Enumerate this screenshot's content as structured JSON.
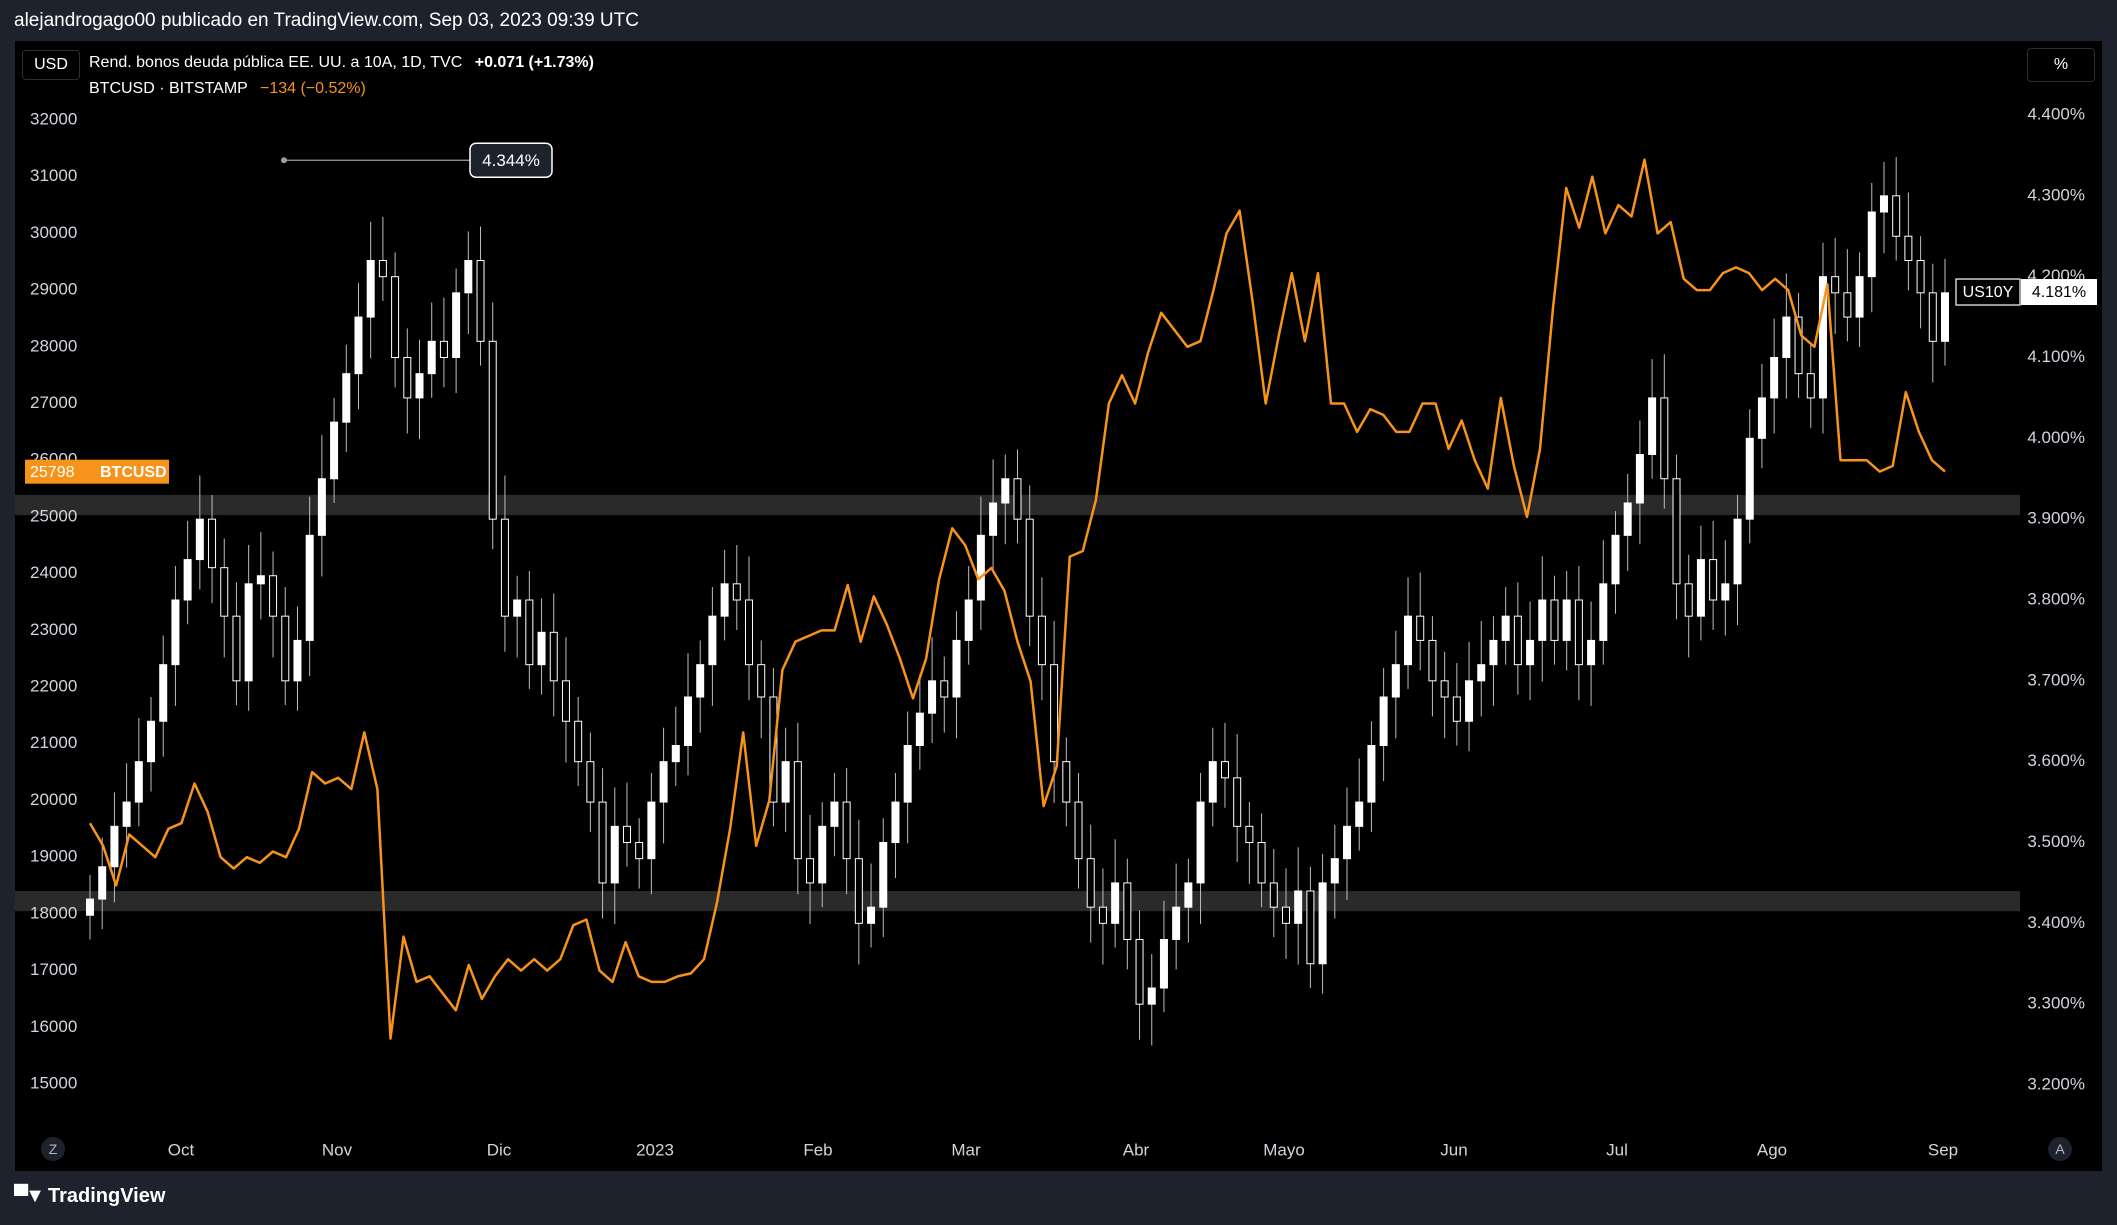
{
  "caption": "alejandrogago00 publicado en TradingView.com, Sep 03, 2023 09:39 UTC",
  "brand": "TradingView",
  "currency_button": "USD",
  "percent_button": "%",
  "z_button": "Z",
  "a_button": "A",
  "legend": {
    "primary": {
      "name": "Rend. bonos deuda pública EE. UU. a 10A, 1D, TVC",
      "change": "+0.071 (+1.73%)"
    },
    "secondary": {
      "name": "BTCUSD · BITSTAMP",
      "change": "−134 (−0.52%)"
    }
  },
  "labels": {
    "btc_price": "25798",
    "btc_symbol": "BTCUSD",
    "us10y_symbol": "US10Y",
    "us10y_value": "4.181%",
    "callout": "4.344%"
  },
  "colors": {
    "btc": "#f7931a",
    "candle": "#ffffff",
    "zone": "#2a2a2a"
  },
  "chart_data": {
    "type": "line",
    "left_axis": {
      "ticks": [
        "32000",
        "31000",
        "30000",
        "29000",
        "28000",
        "27000",
        "26000",
        "25000",
        "24000",
        "23000",
        "22000",
        "21000",
        "20000",
        "19000",
        "18000",
        "17000",
        "16000",
        "15000"
      ],
      "range": [
        15000,
        32000
      ]
    },
    "right_axis": {
      "ticks": [
        "4.400%",
        "4.300%",
        "4.200%",
        "4.100%",
        "4.000%",
        "3.900%",
        "3.800%",
        "3.700%",
        "3.600%",
        "3.500%",
        "3.400%",
        "3.300%",
        "3.200%"
      ],
      "range": [
        3.2,
        4.4
      ]
    },
    "x_ticks": [
      "Oct",
      "Nov",
      "Dic",
      "2023",
      "Feb",
      "Mar",
      "Abr",
      "Mayo",
      "Jun",
      "Jul",
      "Ago",
      "Sep"
    ],
    "zones": [
      {
        "from": 3.415,
        "to": 3.44
      },
      {
        "from": 3.905,
        "to": 3.93
      }
    ],
    "series": [
      {
        "kind": "line",
        "axis": "left",
        "values": [
          19600,
          19200,
          18500,
          19400,
          19200,
          19000,
          19500,
          19600,
          20300,
          19800,
          19000,
          18800,
          19000,
          18900,
          19100,
          19000,
          19500,
          20500,
          20300,
          20400,
          20200,
          21200,
          20200,
          15800,
          17600,
          16800,
          16900,
          16600,
          16300,
          17100,
          16500,
          16900,
          17200,
          17000,
          17200,
          17000,
          17200,
          17800,
          17900,
          17000,
          16800,
          17500,
          16900,
          16800,
          16800,
          16900,
          16950,
          17200,
          18200,
          19500,
          21200,
          19200,
          20000,
          22300,
          22800,
          22900,
          23000,
          23000,
          23800,
          22800,
          23600,
          23100,
          22500,
          21800,
          22500,
          23900,
          24800,
          24500,
          23900,
          24100,
          23700,
          22800,
          22100,
          19900,
          20600,
          24300,
          24400,
          25300,
          27000,
          27500,
          27000,
          27900,
          28600,
          28300,
          28000,
          28100,
          29000,
          30000,
          30400,
          28800,
          27000,
          28200,
          29300,
          28100,
          29300,
          27000,
          27000,
          26500,
          26900,
          26800,
          26500,
          26500,
          27000,
          27000,
          26200,
          26700,
          26000,
          25500,
          27100,
          25900,
          25000,
          26200,
          28700,
          30800,
          30100,
          31000,
          30000,
          30500,
          30300,
          31300,
          30000,
          30200,
          29200,
          29000,
          29000,
          29300,
          29400,
          29300,
          29000,
          29200,
          29000,
          28200,
          28000,
          29100,
          26000,
          26000,
          26000,
          25800,
          25900,
          27200,
          26500,
          26000,
          25800
        ]
      },
      {
        "kind": "candles",
        "axis": "right",
        "close": [
          3.43,
          3.47,
          3.52,
          3.55,
          3.6,
          3.65,
          3.72,
          3.8,
          3.85,
          3.9,
          3.84,
          3.78,
          3.7,
          3.82,
          3.83,
          3.78,
          3.7,
          3.75,
          3.88,
          3.95,
          4.02,
          4.08,
          4.15,
          4.22,
          4.2,
          4.1,
          4.05,
          4.08,
          4.12,
          4.1,
          4.18,
          4.22,
          4.12,
          3.9,
          3.78,
          3.8,
          3.72,
          3.76,
          3.7,
          3.65,
          3.6,
          3.55,
          3.45,
          3.52,
          3.5,
          3.48,
          3.55,
          3.6,
          3.62,
          3.68,
          3.72,
          3.78,
          3.82,
          3.8,
          3.72,
          3.68,
          3.55,
          3.6,
          3.48,
          3.45,
          3.52,
          3.55,
          3.48,
          3.4,
          3.42,
          3.5,
          3.55,
          3.62,
          3.66,
          3.7,
          3.68,
          3.75,
          3.8,
          3.88,
          3.92,
          3.95,
          3.9,
          3.78,
          3.72,
          3.6,
          3.55,
          3.48,
          3.42,
          3.4,
          3.45,
          3.38,
          3.3,
          3.32,
          3.38,
          3.42,
          3.45,
          3.55,
          3.6,
          3.58,
          3.52,
          3.5,
          3.45,
          3.42,
          3.4,
          3.44,
          3.35,
          3.45,
          3.48,
          3.52,
          3.55,
          3.62,
          3.68,
          3.72,
          3.78,
          3.75,
          3.7,
          3.68,
          3.65,
          3.7,
          3.72,
          3.75,
          3.78,
          3.72,
          3.75,
          3.8,
          3.75,
          3.8,
          3.72,
          3.75,
          3.82,
          3.88,
          3.92,
          3.98,
          4.05,
          3.95,
          3.82,
          3.78,
          3.85,
          3.8,
          3.82,
          3.9,
          4.0,
          4.05,
          4.1,
          4.15,
          4.08,
          4.05,
          4.2,
          4.18,
          4.15,
          4.2,
          4.28,
          4.3,
          4.25,
          4.22,
          4.18,
          4.12,
          4.18
        ]
      }
    ]
  }
}
